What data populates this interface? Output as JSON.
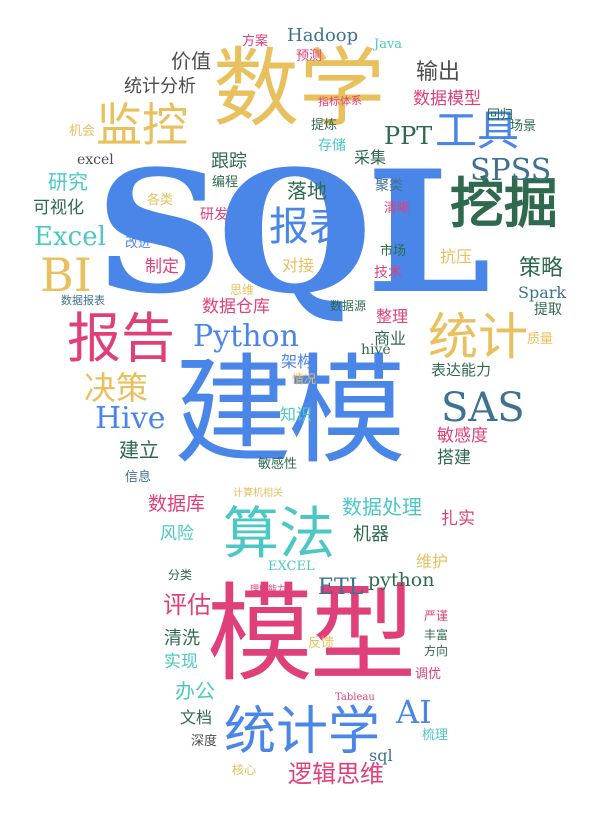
{
  "colors": {
    "blue": "#4a86e8",
    "gold": "#e8c15e",
    "green": "#2f6a4f",
    "pink": "#e0407a",
    "teal": "#4bc8c3",
    "grey": "#4d4d4d",
    "slate": "#3f7290"
  },
  "words": {
    "sql": "SQL",
    "jianmo": "建模",
    "moxing": "模型",
    "shuxue": "数学",
    "wajue": "挖掘",
    "suanfa": "算法",
    "baogao": "报告",
    "tongji": "统计",
    "tongjixue": "统计学",
    "jiankong": "监控",
    "baobiao": "报表",
    "gongju": "工具",
    "bi": "BI",
    "sas": "SAS",
    "spss": "SPSS",
    "python_cap": "Python",
    "hive_cap": "Hive",
    "ai": "AI",
    "excel_cap": "Excel",
    "ppt": "PPT",
    "etl": "ETL",
    "python_low": "python",
    "hadoop": "Hadoop",
    "java": "Java",
    "spark": "Spark",
    "hive_low": "hive",
    "excel_low": "excel",
    "sql_low": "sql",
    "excel_up": "EXCEL",
    "tableau": "Tableau",
    "juece": "决策",
    "celve": "策略",
    "pinggu": "评估",
    "luojisiwei": "逻辑思维",
    "shujuchuli": "数据处理",
    "shujuku": "数据库",
    "shujucangku": "数据仓库",
    "shujumoxing": "数据模型",
    "tongjifenxi": "统计分析",
    "jiazhi": "价值",
    "shuchu": "输出",
    "fangan": "方案",
    "yuce": "预测",
    "zhibiaotixi": "指标体系",
    "huigui": "回归",
    "changjing": "场景",
    "tilian": "提炼",
    "cunchu": "存储",
    "caiji": "采集",
    "genzong": "跟踪",
    "luodi": "落地",
    "juleiv": "聚类",
    "qingxi_v": "清晰",
    "yanjiu": "研究",
    "keshihua": "可视化",
    "jihui": "机会",
    "biancheng": "编程",
    "gelei": "各类",
    "yanfa": "研发",
    "gaijin": "改进",
    "zhiding": "制定",
    "duijie": "对接",
    "shichang": "市场",
    "jishu": "技术",
    "kangya": "抗压",
    "siwei": "思维",
    "shujuyuan": "数据源",
    "shujubaobiao": "数据报表",
    "zhengli": "整理",
    "shangye": "商业",
    "tiqu": "提取",
    "zhiliang": "质量",
    "jiagou": "架构",
    "qingkuang": "情况",
    "zhishi": "知识",
    "biaodanengli": "表达能力",
    "mingandu": "敏感度",
    "dajian": "搭建",
    "jianli": "建立",
    "xinxi": "信息",
    "minganxing": "敏感性",
    "jisuanji": "计算机相关",
    "zhashi": "扎实",
    "fengxian": "风险",
    "jiqi": "机器",
    "weihu": "维护",
    "fenlei": "分类",
    "lijienengli": "理解能力",
    "yanjin": "严谨",
    "fengfu": "丰富",
    "fangxiang": "方向",
    "qingxi": "清洗",
    "shixian": "实现",
    "fankui": "反馈",
    "bangong": "办公",
    "tiaoyou": "调优",
    "wendang": "文档",
    "shendu": "深度",
    "shuli": "梳理",
    "hexin": "核心"
  }
}
